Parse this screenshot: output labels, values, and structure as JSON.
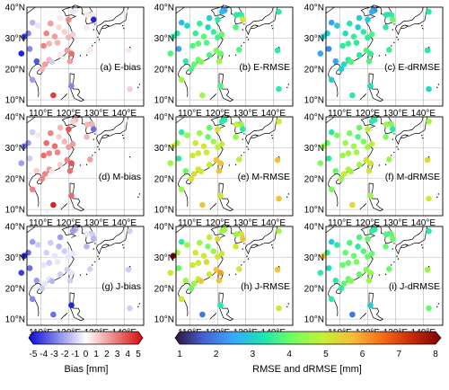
{
  "panels": [
    {
      "label": "(a) E-bias"
    },
    {
      "label": "(b) E-RMSE"
    },
    {
      "label": "(c) E-dRMSE"
    },
    {
      "label": "(d) M-bias"
    },
    {
      "label": "(e) M-RMSE"
    },
    {
      "label": "(f) M-dRMSE"
    },
    {
      "label": "(g) J-bias"
    },
    {
      "label": "(h) J-RMSE"
    },
    {
      "label": "(i) J-dRMSE"
    }
  ],
  "axis_labels": {
    "lat": [
      "40°N",
      "30°N",
      "20°N",
      "10°N"
    ],
    "lon": [
      "110°E",
      "120°E",
      "130°E",
      "140°E"
    ]
  },
  "colorbars": {
    "bias": {
      "label": "Bias [mm]",
      "ticks": [
        "-5",
        "-4",
        "-3",
        "-2",
        "-1",
        "0",
        "1",
        "2",
        "3",
        "4",
        "5"
      ],
      "colors": [
        "#0b0bd8",
        "#ffffff",
        "#d80b0b"
      ]
    },
    "rmse": {
      "label": "RMSE and dRMSE [mm]",
      "ticks": [
        "1",
        "2",
        "3",
        "4",
        "5",
        "6",
        "7",
        "8"
      ],
      "colors": [
        "#30123b",
        "#4662d7",
        "#36aaf9",
        "#1ae4b6",
        "#72fe5e",
        "#c8ef34",
        "#faba39",
        "#f66b19",
        "#ca2a04",
        "#7a0403"
      ]
    }
  },
  "stations": [
    [
      105.5,
      31.5
    ],
    [
      107,
      35
    ],
    [
      109,
      34
    ],
    [
      104,
      30.5
    ],
    [
      103,
      25
    ],
    [
      106,
      26.5
    ],
    [
      108.5,
      22.5
    ],
    [
      110.5,
      20
    ],
    [
      111.5,
      21.5
    ],
    [
      113,
      23
    ],
    [
      114,
      22.3
    ],
    [
      117,
      24.5
    ],
    [
      119.5,
      26
    ],
    [
      121,
      25
    ],
    [
      121.5,
      31.2
    ],
    [
      120,
      30.2
    ],
    [
      118.5,
      32
    ],
    [
      116.5,
      33.5
    ],
    [
      117,
      36.5
    ],
    [
      120,
      36
    ],
    [
      122.5,
      39
    ],
    [
      121.5,
      38.5
    ],
    [
      113.5,
      34.7
    ],
    [
      112,
      31.5
    ],
    [
      113,
      28.2
    ],
    [
      115,
      30.5
    ],
    [
      116,
      28.5
    ],
    [
      111,
      27.5
    ],
    [
      107,
      16.5
    ],
    [
      114.5,
      11.5
    ],
    [
      121,
      14.5
    ],
    [
      128.5,
      37.5
    ],
    [
      126.5,
      33.5
    ],
    [
      120.5,
      22.5
    ],
    [
      127.7,
      26.2
    ],
    [
      141.5,
      26
    ],
    [
      142,
      13.5
    ],
    [
      142,
      38.5
    ],
    [
      129,
      36
    ],
    [
      126.7,
      37.5
    ]
  ],
  "values": {
    "E-bias": [
      -2.5,
      -1.5,
      -0.5,
      -4,
      -4.5,
      -2.5,
      -3.5,
      1.5,
      2,
      1.5,
      -1,
      0.5,
      2,
      3,
      1,
      1.5,
      1,
      0.8,
      0.5,
      2.5,
      0.5,
      -0.5,
      2,
      2.5,
      1.5,
      2,
      1.5,
      2.5,
      -2,
      4,
      -2.5,
      0.5,
      0.5,
      2,
      0.5,
      0.5,
      1,
      0,
      -4.5,
      0.5
    ],
    "E-RMSE": [
      3.5,
      2.8,
      3.2,
      3.5,
      3.8,
      2.5,
      3.5,
      3.8,
      4,
      4,
      4.2,
      3.8,
      4.2,
      4,
      4,
      3.7,
      3.6,
      3.2,
      3,
      3.5,
      2.5,
      2.8,
      3.6,
      3.6,
      3.9,
      3.9,
      3.8,
      3.8,
      4.5,
      4.5,
      3.8,
      3.6,
      3.8,
      4.5,
      3.8,
      3.5,
      3.5,
      3.5,
      5,
      3.5
    ],
    "E-dRMSE": [
      3,
      2.5,
      3,
      3,
      2.5,
      2.2,
      2.5,
      3,
      3.2,
      3.5,
      3.8,
      3.5,
      3.8,
      3.6,
      3.8,
      3.5,
      3.5,
      3,
      3,
      3,
      2.3,
      2.6,
      3.4,
      3.3,
      3.6,
      3.6,
      3.5,
      3.5,
      3,
      3.5,
      3.3,
      3.5,
      3.5,
      3.8,
      3.6,
      3.5,
      3.2,
      3.5,
      4,
      3.4
    ],
    "M-bias": [
      -2,
      -1,
      0.5,
      -3,
      -2,
      -1,
      1,
      2.5,
      2.5,
      2,
      0.5,
      1,
      2.5,
      3.5,
      2,
      2,
      1.5,
      1,
      1.5,
      3.5,
      1.5,
      1,
      2.5,
      3,
      2.5,
      3,
      2.5,
      3,
      2.5,
      4.5,
      3,
      1.5,
      1.5,
      3,
      2,
      0,
      0,
      0,
      -3,
      1.5
    ],
    "M-RMSE": [
      4.5,
      3.5,
      4.5,
      5,
      4.5,
      3.5,
      4,
      5,
      5.2,
      5,
      5,
      4.8,
      5.5,
      5.5,
      5,
      4.8,
      4.5,
      4,
      4,
      5,
      3.5,
      3.5,
      4.5,
      5,
      5,
      5,
      5,
      5,
      4.5,
      5.5,
      5,
      4.5,
      4.5,
      5.5,
      4.8,
      5.5,
      5.5,
      5,
      3.5,
      4.8
    ],
    "M-dRMSE": [
      4,
      3.5,
      4.2,
      4.5,
      4.2,
      3.5,
      4,
      4.5,
      4.8,
      4.8,
      4.5,
      4.5,
      5,
      5,
      4.8,
      4.5,
      4.2,
      3.8,
      4,
      4.8,
      3.5,
      3.5,
      4.2,
      4.5,
      4.5,
      4.5,
      4.5,
      4.5,
      4.2,
      5.2,
      4.5,
      4.2,
      4.2,
      5,
      4.5,
      5.2,
      5,
      4.5,
      3.5,
      4.5
    ],
    "J-bias": [
      -3,
      -2,
      -1,
      -4.5,
      -4,
      -3,
      -2,
      -1,
      -0.5,
      -0.5,
      -1.5,
      -1,
      -1,
      -0.5,
      -0.5,
      -0.5,
      -1,
      -1.5,
      -2,
      0,
      -1.5,
      -2,
      -1,
      -1,
      -1,
      -0.5,
      -0.5,
      -0.5,
      -2.5,
      -3,
      -4.5,
      -1,
      -1.5,
      -1,
      -1,
      -1,
      -1,
      -1,
      -1.5,
      -0.5
    ],
    "J-RMSE": [
      4.5,
      3.5,
      4.5,
      8,
      5,
      4,
      4.5,
      4,
      4.5,
      5,
      5.5,
      5,
      5.5,
      6,
      5,
      5,
      4.5,
      4.2,
      4.8,
      5.2,
      4.5,
      4.5,
      4.5,
      5,
      5,
      5,
      5.2,
      5,
      5,
      2,
      3.5,
      5,
      5,
      5.5,
      5,
      5.5,
      5,
      4.5,
      5.5,
      4.5
    ],
    "J-dRMSE": [
      3.5,
      3,
      3.5,
      5.5,
      3.5,
      3.2,
      3.5,
      3.5,
      4,
      4,
      4.2,
      4,
      4.2,
      4.5,
      4,
      4,
      3.8,
      3.5,
      3.8,
      4,
      3.5,
      3.5,
      3.8,
      4,
      4,
      4,
      4.2,
      4,
      3.5,
      2,
      3,
      4,
      4,
      4.5,
      4,
      4.5,
      4,
      3.5,
      4,
      3.8
    ]
  }
}
